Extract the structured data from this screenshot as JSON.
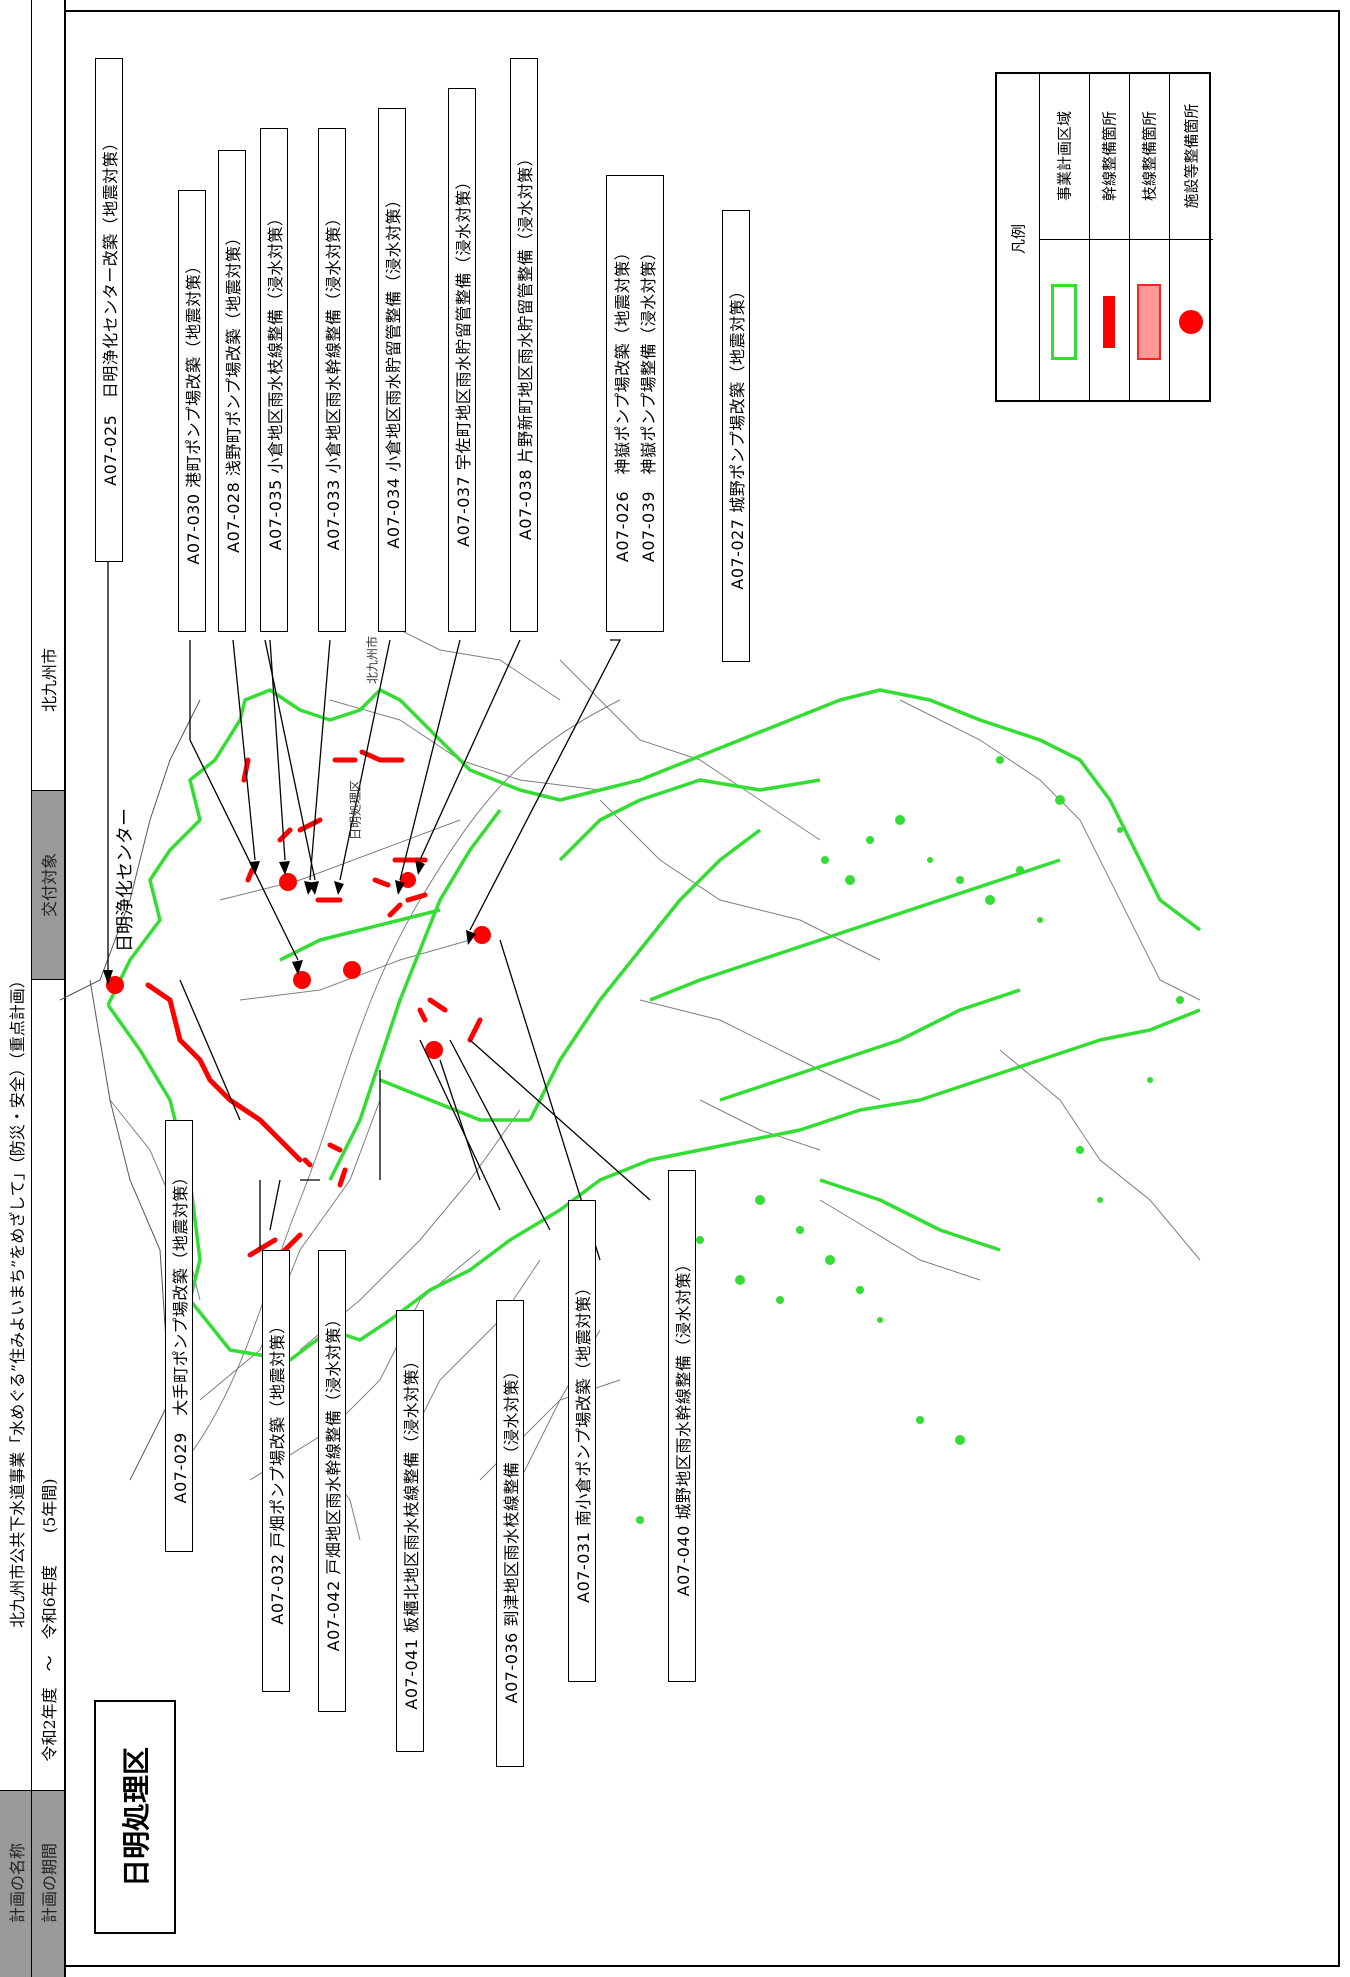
{
  "header": {
    "plan_name_label": "計画の名称",
    "plan_name_value": "北九州市公共下水道事業「水めぐる”住みよいまち”をめざして」（防災・安全）（重点計画）",
    "plan_period_label": "計画の期間",
    "plan_period_value": "令和2年度　～　令和6年度　　(5年間)",
    "target_label": "交付対象",
    "target_value": "北九州市"
  },
  "district_title": "日明処理区",
  "center_label": "日明浄化センター",
  "legend": {
    "title": "凡例",
    "items": [
      {
        "symbol": "green-outline-rect",
        "label": "事業計画区域",
        "color": "#22dd22"
      },
      {
        "symbol": "red-bar",
        "label": "幹線整備箇所",
        "color": "#ff0000"
      },
      {
        "symbol": "pink-rect",
        "label": "枝線整備箇所",
        "color": "#ff9999"
      },
      {
        "symbol": "red-dot",
        "label": "施設等整備箇所",
        "color": "#ff0000"
      }
    ]
  },
  "callouts_top": [
    "A07-025　日明浄化センター改築（地震対策）",
    "A07-030 港町ポンプ場改築（地震対策）",
    "A07-028 浅野町ポンプ場改築（地震対策）",
    "A07-035 小倉地区雨水枝線整備（浸水対策）",
    "A07-033 小倉地区雨水幹線整備（浸水対策）",
    "A07-034 小倉地区雨水貯留管整備（浸水対策）",
    "A07-037 宇佐町地区雨水貯留管整備（浸水対策）",
    "A07-038 片野新町地区雨水貯留管整備（浸水対策）",
    "A07-026　神嶽ポンプ場改築（地震対策）",
    "A07-039　神嶽ポンプ場整備（浸水対策）",
    "A07-027 城野ポンプ場改築（地震対策）"
  ],
  "callouts_bottom": [
    "A07-029　大手町ポンプ場改築（地震対策）",
    "A07-032 戸畑ポンプ場改築（地震対策）",
    "A07-042 戸畑地区雨水幹線整備（浸水対策）",
    "A07-041 板櫃北地区雨水枝線整備（浸水対策）",
    "A07-036 到津地区雨水枝線整備（浸水対策）",
    "A07-031 南小倉ポンプ場改築（地震対策）",
    "A07-040 城野地区雨水幹線整備（浸水対策）"
  ],
  "map_labels": {
    "city": "北九州市",
    "ward": "日明処理区"
  },
  "colors": {
    "area": "#33dd33",
    "trunk": "#ff0000",
    "facility": "#ff0000",
    "roads": "#555555"
  }
}
